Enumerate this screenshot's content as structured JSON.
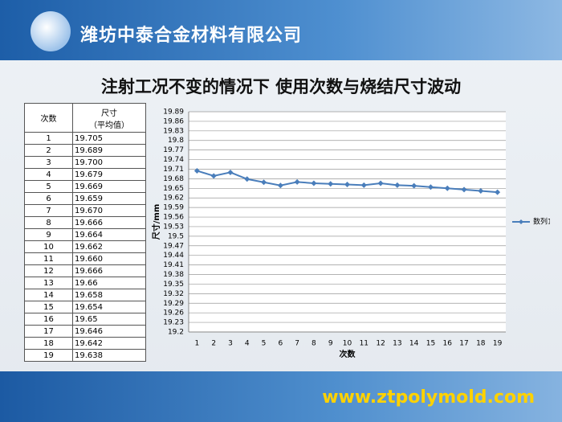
{
  "header": {
    "company": "潍坊中泰合金材料有限公司"
  },
  "title": "注射工况不变的情况下  使用次数与烧结尺寸波动",
  "table": {
    "header": {
      "count": "次数",
      "size": "尺寸",
      "size_note": "（平均值）"
    },
    "rows": [
      [
        "1",
        "19.705"
      ],
      [
        "2",
        "19.689"
      ],
      [
        "3",
        "19.700"
      ],
      [
        "4",
        "19.679"
      ],
      [
        "5",
        "19.669"
      ],
      [
        "6",
        "19.659"
      ],
      [
        "7",
        "19.670"
      ],
      [
        "8",
        "19.666"
      ],
      [
        "9",
        "19.664"
      ],
      [
        "10",
        "19.662"
      ],
      [
        "11",
        "19.660"
      ],
      [
        "12",
        "19.666"
      ],
      [
        "13",
        "19.66"
      ],
      [
        "14",
        "19.658"
      ],
      [
        "15",
        "19.654"
      ],
      [
        "16",
        "19.65"
      ],
      [
        "17",
        "19.646"
      ],
      [
        "18",
        "19.642"
      ],
      [
        "19",
        "19.638"
      ]
    ]
  },
  "chart_data": {
    "type": "line",
    "x_label": "次数",
    "y_label": "尺寸/mm",
    "categories": [
      "1",
      "2",
      "3",
      "4",
      "5",
      "6",
      "7",
      "8",
      "9",
      "10",
      "11",
      "12",
      "13",
      "14",
      "15",
      "16",
      "17",
      "18",
      "19"
    ],
    "series": [
      {
        "name": "数列1",
        "color": "#4a7ebb",
        "values": [
          19.705,
          19.689,
          19.7,
          19.679,
          19.669,
          19.659,
          19.67,
          19.666,
          19.664,
          19.662,
          19.66,
          19.666,
          19.66,
          19.658,
          19.654,
          19.65,
          19.646,
          19.642,
          19.638
        ]
      }
    ],
    "ylim": [
      19.2,
      19.89
    ],
    "yticks": [
      19.2,
      19.23,
      19.26,
      19.29,
      19.32,
      19.35,
      19.38,
      19.41,
      19.44,
      19.47,
      19.5,
      19.53,
      19.56,
      19.59,
      19.62,
      19.65,
      19.68,
      19.71,
      19.74,
      19.77,
      19.8,
      19.83,
      19.86,
      19.89
    ],
    "grid": true,
    "legend": "right"
  },
  "footer": {
    "url": "www.ztpolymold.com"
  }
}
